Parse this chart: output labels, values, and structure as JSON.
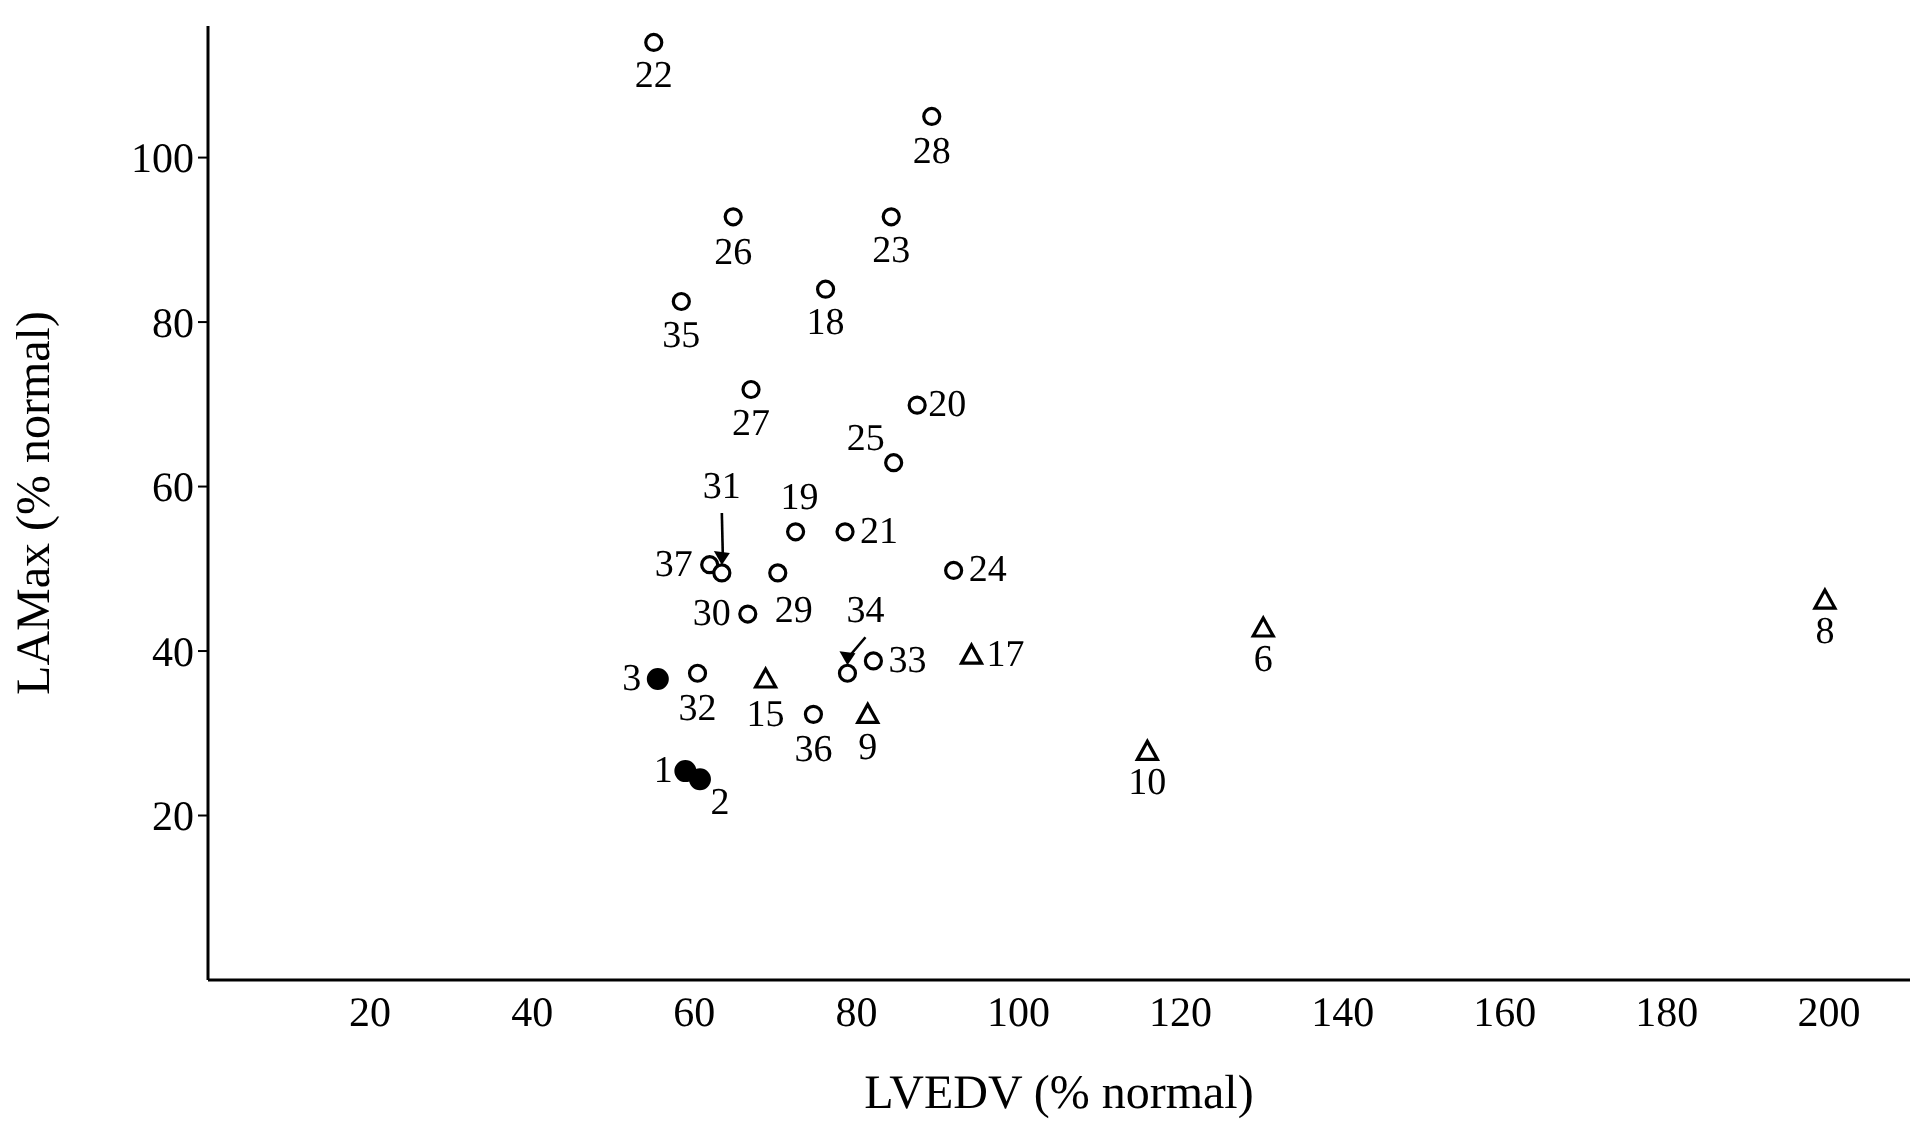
{
  "chart_data": {
    "type": "scatter",
    "xlabel": "LVEDV (% normal)",
    "ylabel": "LAMax (% normal)",
    "xlim": [
      0,
      210
    ],
    "ylim": [
      0,
      116
    ],
    "xticks": [
      20,
      40,
      60,
      80,
      100,
      120,
      140,
      160,
      180,
      200
    ],
    "yticks": [
      20,
      40,
      60,
      80,
      100
    ],
    "grid": false,
    "legend": false,
    "series": [
      {
        "color": "#000000",
        "marker": "filled circle",
        "x": [
          58.9,
          60.7,
          55.5
        ],
        "values": [
          25.4,
          24.4,
          36.6
        ]
      },
      {
        "color": "#000000",
        "marker": "circle",
        "x": [
          55,
          89.3,
          64.8,
          84.3,
          58.4,
          76.2,
          67,
          87.5,
          84.6,
          72.5,
          78.6,
          61.9,
          63.4,
          70.3,
          92,
          66.6,
          78.9,
          82.1,
          60.4,
          74.7
        ],
        "values": [
          114,
          105,
          92.8,
          92.8,
          82.5,
          84,
          71.8,
          69.9,
          62.9,
          54.5,
          54.5,
          50.5,
          49.5,
          49.5,
          49.8,
          44.5,
          37.3,
          38.8,
          37.3,
          32.3
        ]
      },
      {
        "color": "#000000",
        "marker": "triangle",
        "x": [
          94.2,
          68.8,
          81.4,
          130.2,
          199.5,
          115.9
        ],
        "values": [
          39.5,
          36.6,
          32.3,
          42.8,
          46.2,
          27.8
        ]
      }
    ],
    "annotations": [
      {
        "text": "22",
        "x": 55,
        "y": 114
      },
      {
        "text": "28",
        "x": 89.3,
        "y": 105
      },
      {
        "text": "26",
        "x": 64.8,
        "y": 92.8
      },
      {
        "text": "23",
        "x": 84.3,
        "y": 92.8
      },
      {
        "text": "35",
        "x": 58.4,
        "y": 82.5
      },
      {
        "text": "18",
        "x": 76.2,
        "y": 84
      },
      {
        "text": "27",
        "x": 67,
        "y": 71.8
      },
      {
        "text": "20",
        "x": 87.5,
        "y": 69.9
      },
      {
        "text": "25",
        "x": 84.6,
        "y": 62.9
      },
      {
        "text": "19",
        "x": 72.5,
        "y": 54.5
      },
      {
        "text": "21",
        "x": 78.6,
        "y": 54.5
      },
      {
        "text": "37",
        "x": 61.9,
        "y": 50.5
      },
      {
        "text": "31",
        "x": 63.4,
        "y": 49.5
      },
      {
        "text": "29",
        "x": 70.3,
        "y": 49.5
      },
      {
        "text": "24",
        "x": 92,
        "y": 49.8
      },
      {
        "text": "30",
        "x": 66.6,
        "y": 44.5
      },
      {
        "text": "34",
        "x": 78.9,
        "y": 37.3
      },
      {
        "text": "33",
        "x": 82.1,
        "y": 38.8
      },
      {
        "text": "17",
        "x": 94.2,
        "y": 39.5
      },
      {
        "text": "3",
        "x": 55.5,
        "y": 36.6
      },
      {
        "text": "32",
        "x": 60.4,
        "y": 37.3
      },
      {
        "text": "15",
        "x": 68.8,
        "y": 36.6
      },
      {
        "text": "36",
        "x": 74.7,
        "y": 32.3
      },
      {
        "text": "9",
        "x": 81.4,
        "y": 32.3
      },
      {
        "text": "1",
        "x": 58.9,
        "y": 25.4
      },
      {
        "text": "2",
        "x": 60.7,
        "y": 24.4
      },
      {
        "text": "6",
        "x": 130.2,
        "y": 42.8
      },
      {
        "text": "8",
        "x": 199.5,
        "y": 46.2
      },
      {
        "text": "10",
        "x": 115.9,
        "y": 27.8
      }
    ]
  }
}
